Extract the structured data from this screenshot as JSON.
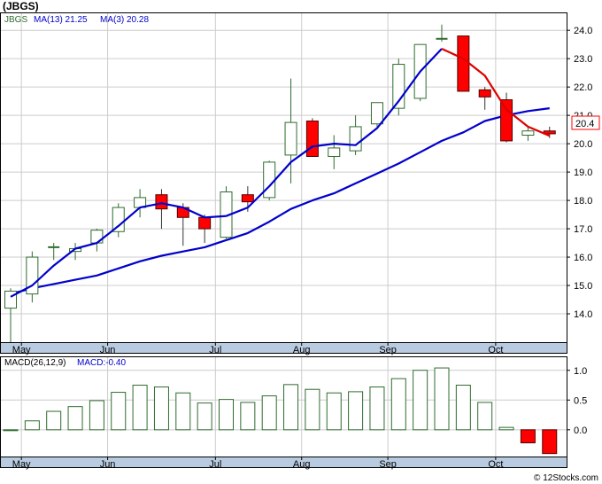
{
  "title": "(JBGS)",
  "credit": "© 12Stocks.com",
  "colors": {
    "up": "#2f6b2f",
    "down": "#ff0000",
    "ma13": "#0000cc",
    "ma3": "#dd0000",
    "grid": "#cccccc",
    "axis_band": "#b9cbe0",
    "price_tag_border": "#ff0000"
  },
  "legend": {
    "symbol": "JBGS",
    "ma13": "MA(13) 21.25",
    "ma3": "MA(3) 20.28"
  },
  "macd_legend": {
    "name": "MACD(26,12,9)",
    "value": "MACD:-0.40"
  },
  "last_price_tag": "20.4",
  "month_labels": [
    "May",
    "Jun",
    "Jul",
    "Aug",
    "Sep",
    "Oct"
  ],
  "chart_data": [
    {
      "type": "candlestick",
      "title": "(JBGS)",
      "x_unit": "week",
      "ylim": [
        13.0,
        24.6
      ],
      "yticks": [
        14.0,
        15.0,
        16.0,
        17.0,
        18.0,
        19.0,
        20.0,
        21.0,
        22.0,
        23.0,
        24.0
      ],
      "grid": true,
      "month_marks": [
        {
          "label": "May",
          "week": 1.0
        },
        {
          "label": "Jun",
          "week": 5.0
        },
        {
          "label": "Jul",
          "week": 10.0
        },
        {
          "label": "Aug",
          "week": 14.0
        },
        {
          "label": "Sep",
          "week": 18.0
        },
        {
          "label": "Oct",
          "week": 23.0
        }
      ],
      "candles": [
        {
          "o": 14.2,
          "h": 14.9,
          "l": 12.9,
          "c": 14.8
        },
        {
          "o": 14.7,
          "h": 16.2,
          "l": 14.4,
          "c": 16.0
        },
        {
          "o": 16.3,
          "h": 16.5,
          "l": 15.9,
          "c": 16.35
        },
        {
          "o": 16.2,
          "h": 16.5,
          "l": 15.9,
          "c": 16.3
        },
        {
          "o": 16.5,
          "h": 17.0,
          "l": 16.2,
          "c": 16.95
        },
        {
          "o": 16.9,
          "h": 17.9,
          "l": 16.7,
          "c": 17.75
        },
        {
          "o": 17.75,
          "h": 18.4,
          "l": 17.4,
          "c": 18.1
        },
        {
          "o": 18.2,
          "h": 18.4,
          "l": 17.0,
          "c": 17.7
        },
        {
          "o": 17.75,
          "h": 17.9,
          "l": 16.4,
          "c": 17.4
        },
        {
          "o": 17.4,
          "h": 17.5,
          "l": 16.5,
          "c": 17.0
        },
        {
          "o": 16.7,
          "h": 18.5,
          "l": 16.6,
          "c": 18.3
        },
        {
          "o": 18.2,
          "h": 18.5,
          "l": 17.6,
          "c": 17.95
        },
        {
          "o": 18.1,
          "h": 19.4,
          "l": 18.0,
          "c": 19.35
        },
        {
          "o": 19.6,
          "h": 22.3,
          "l": 18.6,
          "c": 20.75
        },
        {
          "o": 20.8,
          "h": 20.9,
          "l": 19.55,
          "c": 19.55
        },
        {
          "o": 19.55,
          "h": 20.3,
          "l": 19.1,
          "c": 19.85
        },
        {
          "o": 19.75,
          "h": 21.0,
          "l": 19.6,
          "c": 20.6
        },
        {
          "o": 20.7,
          "h": 21.4,
          "l": 20.6,
          "c": 21.45
        },
        {
          "o": 21.25,
          "h": 23.0,
          "l": 21.0,
          "c": 22.8
        },
        {
          "o": 21.6,
          "h": 23.5,
          "l": 21.5,
          "c": 23.5
        },
        {
          "o": 23.65,
          "h": 24.2,
          "l": 23.6,
          "c": 23.7
        },
        {
          "o": 23.8,
          "h": 23.8,
          "l": 21.85,
          "c": 21.85
        },
        {
          "o": 21.9,
          "h": 22.0,
          "l": 21.2,
          "c": 21.65
        },
        {
          "o": 21.55,
          "h": 21.8,
          "l": 20.05,
          "c": 20.1
        },
        {
          "o": 20.3,
          "h": 20.6,
          "l": 20.1,
          "c": 20.45
        },
        {
          "o": 20.45,
          "h": 20.6,
          "l": 20.2,
          "c": 20.35
        }
      ],
      "series": [
        {
          "name": "MA(13)",
          "x_start": 0,
          "values": [
            14.7,
            14.9,
            15.05,
            15.2,
            15.35,
            15.6,
            15.85,
            16.05,
            16.2,
            16.35,
            16.6,
            16.85,
            17.25,
            17.7,
            18.0,
            18.25,
            18.6,
            18.95,
            19.3,
            19.7,
            20.1,
            20.4,
            20.8,
            21.0,
            21.15,
            21.25
          ]
        },
        {
          "name": "MA(3)",
          "x_start": 0,
          "values": [
            14.6,
            15.0,
            15.7,
            16.3,
            16.5,
            17.1,
            17.75,
            17.9,
            17.75,
            17.4,
            17.45,
            17.75,
            18.5,
            19.35,
            19.9,
            20.0,
            19.95,
            20.55,
            21.5,
            22.55,
            23.35,
            23.0,
            22.4,
            21.2,
            20.6,
            20.28
          ]
        }
      ]
    },
    {
      "type": "bar",
      "title": "MACD(26,12,9)",
      "ylim": [
        -0.45,
        1.22
      ],
      "yticks": [
        0.0,
        0.5,
        1.0
      ],
      "series": [
        {
          "name": "MACD(26,12,9)",
          "values": [
            0.0,
            0.15,
            0.31,
            0.39,
            0.49,
            0.63,
            0.75,
            0.72,
            0.62,
            0.45,
            0.51,
            0.46,
            0.57,
            0.76,
            0.68,
            0.62,
            0.64,
            0.72,
            0.86,
            1.0,
            1.04,
            0.75,
            0.46,
            0.04,
            -0.22,
            -0.4
          ]
        }
      ]
    }
  ]
}
